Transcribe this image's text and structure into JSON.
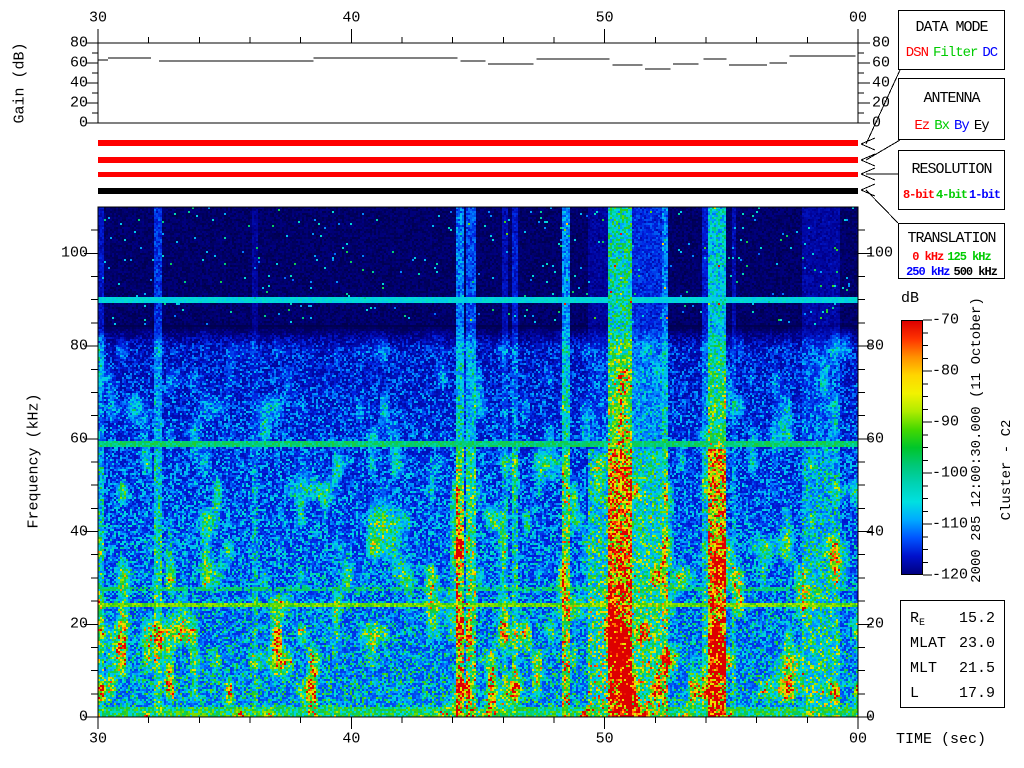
{
  "title": {
    "datetime": "2000 285 12:00:30.000 (11 October)",
    "spacecraft": "Cluster - C2"
  },
  "gain_panel": {
    "ylabel": "Gain (dB)",
    "y_range": [
      0,
      80
    ],
    "y_ticks": [
      0,
      20,
      40,
      60,
      80
    ],
    "y_minor_step": 10,
    "segments": [
      [
        30.0,
        30.4,
        63
      ],
      [
        30.4,
        32.1,
        65
      ],
      [
        32.4,
        38.5,
        62
      ],
      [
        38.5,
        44.2,
        65
      ],
      [
        44.3,
        45.3,
        62
      ],
      [
        45.4,
        47.2,
        59
      ],
      [
        47.3,
        50.2,
        64
      ],
      [
        50.3,
        51.5,
        58
      ],
      [
        51.6,
        52.6,
        54
      ],
      [
        52.7,
        53.7,
        59
      ],
      [
        53.9,
        54.8,
        64
      ],
      [
        54.9,
        56.4,
        58
      ],
      [
        56.5,
        57.2,
        60
      ],
      [
        57.3,
        59.9,
        67
      ]
    ]
  },
  "time_axis": {
    "title": "TIME (sec)",
    "range": [
      30,
      60
    ],
    "major_ticks": [
      {
        "value": 30,
        "label": "30"
      },
      {
        "value": 40,
        "label": "40"
      },
      {
        "value": 50,
        "label": "50"
      },
      {
        "value": 60,
        "label": "00"
      }
    ],
    "minor_step": 2
  },
  "freq_axis": {
    "label": "Frequency (kHz)",
    "range": [
      0,
      110
    ],
    "major_ticks": [
      0,
      20,
      40,
      60,
      80,
      100
    ],
    "minor_step": 5
  },
  "status_bars": [
    {
      "name": "data-mode-bar",
      "color": "#ff0000"
    },
    {
      "name": "antenna-bar",
      "color": "#ff0000"
    },
    {
      "name": "resolution-bar",
      "color": "#ff0000"
    },
    {
      "name": "translation-bar",
      "color": "#000000"
    }
  ],
  "legend_boxes": {
    "data_mode": {
      "title": "DATA MODE",
      "items": [
        {
          "label": "DSN",
          "color": "#ff0000"
        },
        {
          "label": "Filter",
          "color": "#00cc00"
        },
        {
          "label": "DC",
          "color": "#0000ff"
        }
      ]
    },
    "antenna": {
      "title": "ANTENNA",
      "items": [
        {
          "label": "Ez",
          "color": "#ff0000"
        },
        {
          "label": "Bx",
          "color": "#00cc00"
        },
        {
          "label": "By",
          "color": "#0000ff"
        },
        {
          "label": "Ey",
          "color": "#000000"
        }
      ]
    },
    "resolution": {
      "title": "RESOLUTION",
      "items": [
        {
          "label": "8-bit",
          "color": "#ff0000"
        },
        {
          "label": "4-bit",
          "color": "#00cc00"
        },
        {
          "label": "1-bit",
          "color": "#0000ff"
        }
      ]
    },
    "translation": {
      "title": "TRANSLATION",
      "rows": [
        [
          {
            "label": "0 kHz",
            "color": "#ff0000"
          },
          {
            "label": "125 kHz",
            "color": "#00cc00"
          }
        ],
        [
          {
            "label": "250 kHz",
            "color": "#0000ff"
          },
          {
            "label": "500 kHz",
            "color": "#000000"
          }
        ]
      ]
    }
  },
  "colorbar": {
    "title": "dB",
    "range": [
      -70,
      -120
    ],
    "tick_labels": [
      "-70",
      "-80",
      "-90",
      "-100",
      "-110",
      "-120"
    ],
    "minor_per_major": 3,
    "gradient_top_to_bottom": [
      "#dd0000",
      "#ff3300",
      "#ff9100",
      "#ffd500",
      "#f2f200",
      "#b0ec00",
      "#44d800",
      "#00c62a",
      "#00c878",
      "#00d2b4",
      "#00e0e0",
      "#00aaff",
      "#0055ff",
      "#0011cc",
      "#000080"
    ]
  },
  "info_box": {
    "rows": [
      {
        "label": "R",
        "subscript": "E",
        "value": "15.2"
      },
      {
        "label": "MLAT",
        "subscript": "",
        "value": "23.0"
      },
      {
        "label": "MLT",
        "subscript": "",
        "value": "21.5"
      },
      {
        "label": "L",
        "subscript": "",
        "value": "17.9"
      }
    ]
  },
  "chart_data": {
    "type": "heatmap",
    "title": "Cluster - C2 wideband spectrogram, 2000 285 12:00:30.000 (11 October)",
    "xlabel": "TIME (sec)",
    "ylabel": "Frequency (kHz)",
    "x_range_sec": [
      30,
      60
    ],
    "x_tick_labels": [
      "30",
      "40",
      "50",
      "00"
    ],
    "y_range_khz": [
      0,
      110
    ],
    "color_range_db": [
      -120,
      -70
    ],
    "colorbar_label": "dB",
    "background": {
      "above_84_khz": "very dark navy, sparse speckles (~-120 dB)",
      "below_84_khz": "blue speckle noise densifying toward low frequency (-112 to -102 dB)",
      "bottom_edge": "bright green-cyan row below 2.2 kHz (~-95 dB)"
    },
    "horizontal_lines": [
      {
        "freq_khz": 90.0,
        "level": 0.46,
        "coverage": 1.0,
        "note": "solid cyan interference line"
      },
      {
        "freq_khz": 59.0,
        "level": 0.58,
        "coverage": 1.0,
        "note": "thin green interference line"
      },
      {
        "freq_khz": 27.6,
        "level": 0.58,
        "coverage": 0.75,
        "note": "broken green interference line"
      },
      {
        "freq_khz": 24.1,
        "level": 0.72,
        "coverage": 1.0,
        "note": "solid yellow-green interference line"
      }
    ],
    "vertical_events": [
      {
        "t0": 30.0,
        "t1": 30.2,
        "boost": 0.1,
        "low": 0.08,
        "speck": 0
      },
      {
        "t0": 32.2,
        "t1": 32.5,
        "boost": 0.16,
        "low": 0.05,
        "speck": 0
      },
      {
        "t0": 36.05,
        "t1": 36.3,
        "boost": 0.05,
        "low": 0.04,
        "speck": 0
      },
      {
        "t0": 44.1,
        "t1": 44.45,
        "boost": 0.26,
        "low": 0.16,
        "speck": 0.01
      },
      {
        "t0": 44.55,
        "t1": 44.9,
        "boost": 0.2,
        "low": 0.12,
        "speck": 0.006
      },
      {
        "t0": 45.95,
        "t1": 46.15,
        "boost": 0.08,
        "low": 0.04,
        "speck": 0
      },
      {
        "t0": 46.35,
        "t1": 46.55,
        "boost": 0.12,
        "low": 0.05,
        "speck": 0
      },
      {
        "t0": 48.35,
        "t1": 48.6,
        "boost": 0.28,
        "low": 0.1,
        "speck": 0.002
      },
      {
        "t0": 49.35,
        "t1": 50.1,
        "boost": 0.05,
        "low": 0.16,
        "speck": 0.004
      },
      {
        "t0": 50.15,
        "t1": 51.05,
        "boost": 0.48,
        "low": 0.2,
        "speck": 0.022
      },
      {
        "t0": 51.1,
        "t1": 52.25,
        "boost": 0.15,
        "low": 0.1,
        "speck": 0.004
      },
      {
        "t0": 52.3,
        "t1": 52.5,
        "boost": 0.26,
        "low": 0.08,
        "speck": 0.002
      },
      {
        "t0": 53.85,
        "t1": 54.05,
        "boost": 0.12,
        "low": 0.05,
        "speck": 0
      },
      {
        "t0": 54.1,
        "t1": 54.75,
        "boost": 0.4,
        "low": 0.22,
        "speck": 0.02
      },
      {
        "t0": 55.0,
        "t1": 55.2,
        "boost": 0.08,
        "low": 0.04,
        "speck": 0
      },
      {
        "t0": 57.8,
        "t1": 59.3,
        "boost": 0.06,
        "low": 0.09,
        "speck": 0
      }
    ],
    "seed": 1285
  }
}
